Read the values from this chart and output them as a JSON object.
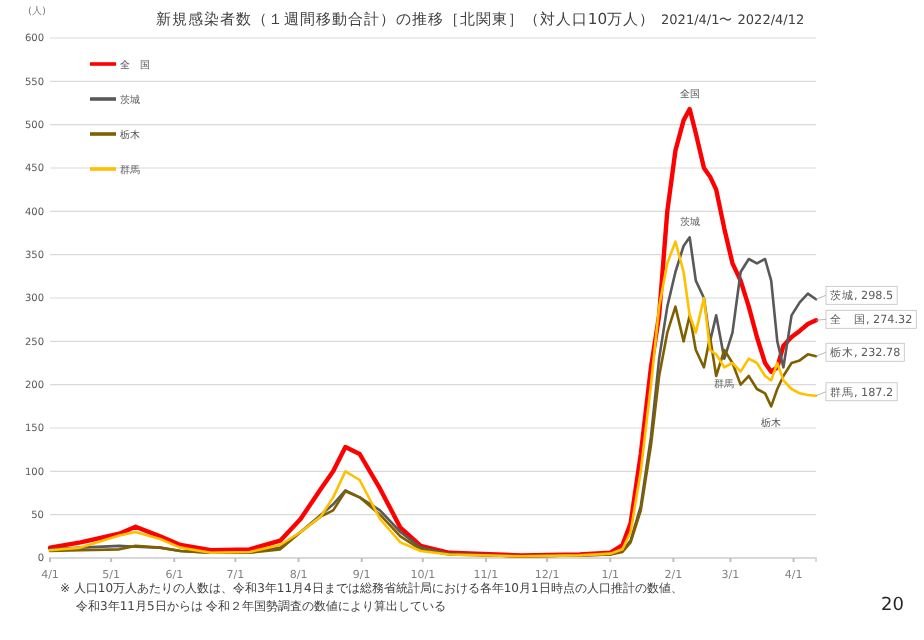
{
  "chart_data": {
    "type": "line",
    "title": "新規感染者数（１週間移動合計）の推移［北関東］（対人口10万人）",
    "subtitle": "2021/4/1〜 2022/4/12",
    "ylabel": "(人)",
    "x": [
      "2021-04-01",
      "2021-04-16",
      "2021-05-05",
      "2021-05-13",
      "2021-05-25",
      "2021-06-04",
      "2021-06-19",
      "2021-07-08",
      "2021-07-23",
      "2021-08-02",
      "2021-08-12",
      "2021-08-18",
      "2021-08-24",
      "2021-08-31",
      "2021-09-10",
      "2021-09-20",
      "2021-09-30",
      "2021-10-14",
      "2021-11-18",
      "2021-12-17",
      "2022-01-01",
      "2022-01-07",
      "2022-01-11",
      "2022-01-16",
      "2022-01-21",
      "2022-01-25",
      "2022-01-29",
      "2022-02-02",
      "2022-02-06",
      "2022-02-09",
      "2022-02-12",
      "2022-02-16",
      "2022-02-19",
      "2022-02-22",
      "2022-02-26",
      "2022-03-02",
      "2022-03-06",
      "2022-03-10",
      "2022-03-14",
      "2022-03-18",
      "2022-03-21",
      "2022-03-24",
      "2022-03-27",
      "2022-03-31",
      "2022-04-04",
      "2022-04-08",
      "2022-04-12"
    ],
    "series": [
      {
        "name": "全　国",
        "color": "#ff0000",
        "values": [
          12,
          18,
          28,
          36,
          25,
          15,
          9,
          10,
          20,
          45,
          80,
          100,
          128,
          120,
          80,
          35,
          14,
          6,
          3,
          4,
          6,
          15,
          40,
          120,
          220,
          280,
          400,
          470,
          505,
          518,
          490,
          450,
          440,
          425,
          380,
          340,
          320,
          290,
          255,
          225,
          215,
          220,
          245,
          255,
          262,
          270,
          274.32
        ]
      },
      {
        "name": "茨城",
        "color": "#595959",
        "values": [
          10,
          12,
          14,
          13,
          12,
          8,
          6,
          7,
          12,
          30,
          50,
          62,
          78,
          70,
          55,
          30,
          12,
          5,
          2,
          3,
          4,
          8,
          20,
          60,
          140,
          230,
          290,
          330,
          360,
          370,
          320,
          300,
          250,
          280,
          230,
          260,
          330,
          345,
          340,
          345,
          320,
          250,
          220,
          280,
          295,
          305,
          298.5
        ]
      },
      {
        "name": "栃木",
        "color": "#7f6000",
        "values": [
          8,
          9,
          10,
          14,
          12,
          8,
          6,
          6,
          10,
          30,
          48,
          55,
          77,
          70,
          50,
          25,
          10,
          4,
          2,
          3,
          4,
          7,
          18,
          55,
          130,
          210,
          260,
          290,
          250,
          280,
          240,
          220,
          255,
          210,
          240,
          225,
          200,
          210,
          195,
          190,
          175,
          195,
          210,
          225,
          228,
          235,
          232.78
        ]
      },
      {
        "name": "群馬",
        "color": "#ffc000",
        "values": [
          9,
          12,
          26,
          30,
          22,
          12,
          6,
          7,
          15,
          30,
          48,
          70,
          100,
          90,
          45,
          18,
          8,
          4,
          2,
          3,
          5,
          10,
          30,
          100,
          200,
          290,
          340,
          365,
          330,
          280,
          260,
          300,
          240,
          235,
          220,
          225,
          215,
          230,
          225,
          210,
          205,
          225,
          205,
          195,
          190,
          188,
          187.2
        ]
      }
    ],
    "xlim": [
      "2021-04-01",
      "2022-04-12"
    ],
    "ylim": [
      0,
      600
    ],
    "yticks": [
      0,
      50,
      100,
      150,
      200,
      250,
      300,
      350,
      400,
      450,
      500,
      550,
      600
    ],
    "xticks": [
      {
        "value": "2021-04-01",
        "label": "4/1"
      },
      {
        "value": "2021-05-01",
        "label": "5/1"
      },
      {
        "value": "2021-06-01",
        "label": "6/1"
      },
      {
        "value": "2021-07-01",
        "label": "7/1"
      },
      {
        "value": "2021-08-01",
        "label": "8/1"
      },
      {
        "value": "2021-09-01",
        "label": "9/1"
      },
      {
        "value": "2021-10-01",
        "label": "10/1"
      },
      {
        "value": "2021-11-01",
        "label": "11/1"
      },
      {
        "value": "2021-12-01",
        "label": "12/1"
      },
      {
        "value": "2022-01-01",
        "label": "1/1"
      },
      {
        "value": "2022-02-01",
        "label": "2/1"
      },
      {
        "value": "2022-03-01",
        "label": "3/1"
      },
      {
        "value": "2022-04-01",
        "label": "4/1"
      }
    ],
    "grid": "y",
    "legend": "top left",
    "line_style": "solid",
    "marker": "none",
    "annotations": [
      {
        "text": "全国",
        "x": "2022-02-09",
        "y": 518
      },
      {
        "text": "茨城",
        "x": "2022-02-09",
        "y": 370
      },
      {
        "text": "群馬",
        "x": "2022-02-26",
        "y": 220
      },
      {
        "text": "栃木",
        "x": "2022-03-21",
        "y": 175
      },
      {
        "text": "茨城, 298.5",
        "x": "2022-04-12",
        "y": 298.5
      },
      {
        "text": "全　国, 274.32",
        "x": "2022-04-12",
        "y": 274.32
      },
      {
        "text": "栃木, 232.78",
        "x": "2022-04-12",
        "y": 232.78
      },
      {
        "text": "群馬, 187.2",
        "x": "2022-04-12",
        "y": 187.2
      },
      "※ 人口10万人あたりの人数は、令和3年11月4日までは総務省統計局における各年10月1日時点の人口推計の数値、",
      "令和3年11月5日からは 令和２年国勢調査の数値により算出している",
      "20"
    ]
  }
}
